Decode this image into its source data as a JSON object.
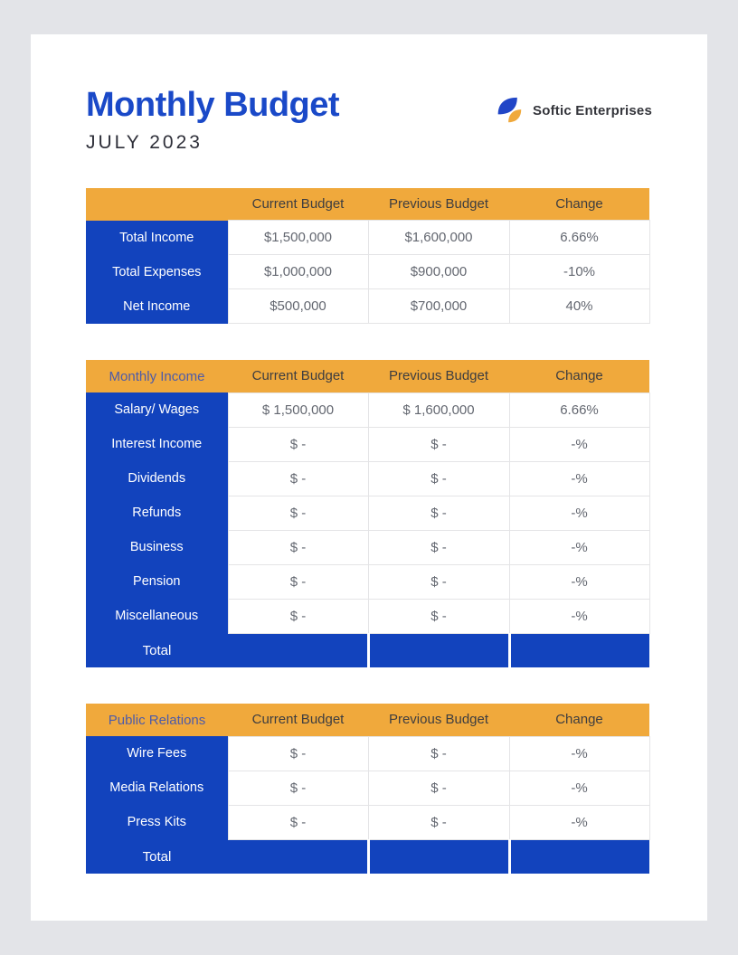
{
  "header": {
    "title": "Monthly Budget",
    "subtitle": "JULY 2023",
    "brand": "Softic Enterprises"
  },
  "colors": {
    "title_blue": "#1A49C8",
    "table_blue": "#1243BD",
    "header_orange": "#F0A93C",
    "section_label_blue": "#4D5BA9",
    "page_background": "#E3E4E8",
    "value_text_gray": "#636770"
  },
  "tables": [
    {
      "id": "budget-summary",
      "section_label": "",
      "columns": [
        "Current Budget",
        "Previous Budget",
        "Change"
      ],
      "rows": [
        {
          "label": "Total Income",
          "values": [
            "$1,500,000",
            "$1,600,000",
            "6.66%"
          ]
        },
        {
          "label": "Total Expenses",
          "values": [
            "$1,000,000",
            "$900,000",
            "-10%"
          ]
        },
        {
          "label": "Net Income",
          "values": [
            "$500,000",
            "$700,000",
            "40%"
          ]
        }
      ],
      "total_label": null,
      "total_values": null
    },
    {
      "id": "monthly-income",
      "section_label": "Monthly Income",
      "columns": [
        "Current Budget",
        "Previous Budget",
        "Change"
      ],
      "rows": [
        {
          "label": "Salary/ Wages",
          "values": [
            "$ 1,500,000",
            "$ 1,600,000",
            "6.66%"
          ]
        },
        {
          "label": "Interest Income",
          "values": [
            "$ -",
            "$ -",
            "-%"
          ]
        },
        {
          "label": "Dividends",
          "values": [
            "$ -",
            "$ -",
            "-%"
          ]
        },
        {
          "label": "Refunds",
          "values": [
            "$ -",
            "$ -",
            "-%"
          ]
        },
        {
          "label": "Business",
          "values": [
            "$ -",
            "$ -",
            "-%"
          ]
        },
        {
          "label": "Pension",
          "values": [
            "$ -",
            "$ -",
            "-%"
          ]
        },
        {
          "label": "Miscellaneous",
          "values": [
            "$ -",
            "$ -",
            "-%"
          ]
        }
      ],
      "total_label": "Total",
      "total_values": [
        "",
        "",
        ""
      ]
    },
    {
      "id": "public-relations",
      "section_label": "Public Relations",
      "columns": [
        "Current Budget",
        "Previous Budget",
        "Change"
      ],
      "rows": [
        {
          "label": "Wire Fees",
          "values": [
            "$ -",
            "$ -",
            "-%"
          ]
        },
        {
          "label": "Media Relations",
          "values": [
            "$ -",
            "$ -",
            "-%"
          ]
        },
        {
          "label": "Press Kits",
          "values": [
            "$ -",
            "$ -",
            "-%"
          ]
        }
      ],
      "total_label": "Total",
      "total_values": [
        "",
        "",
        ""
      ]
    }
  ]
}
